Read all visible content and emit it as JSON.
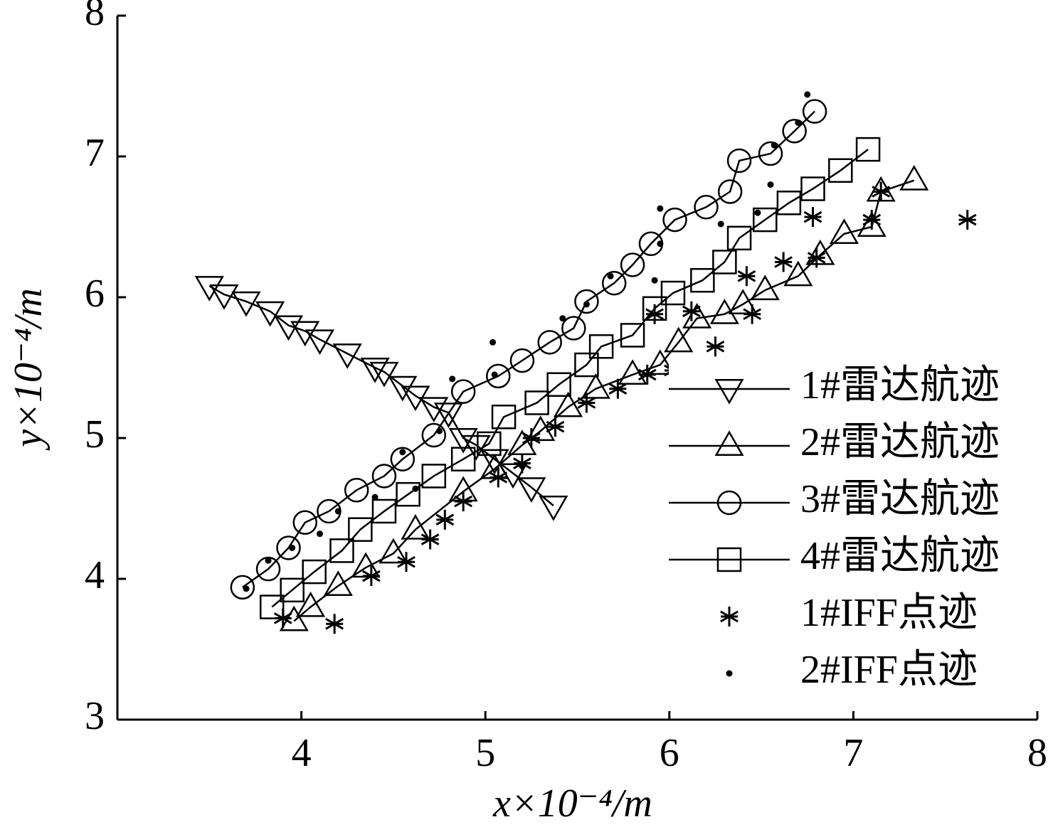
{
  "chart_data": {
    "type": "line",
    "xlabel": "x×10⁻⁴/m",
    "ylabel": "y×10⁻⁴/m",
    "xlim": [
      3,
      8
    ],
    "ylim": [
      3,
      8
    ],
    "xticks": [
      4,
      5,
      6,
      7,
      8
    ],
    "yticks": [
      3,
      4,
      5,
      6,
      7,
      8
    ],
    "legend": "lower right",
    "series": [
      {
        "name": "1#雷达航迹",
        "color": "#000000",
        "marker": "triangle-down",
        "line": true,
        "x": [
          3.5,
          3.58,
          3.7,
          3.83,
          3.93,
          4.02,
          4.1,
          4.25,
          4.4,
          4.45,
          4.55,
          4.62,
          4.72,
          4.8,
          4.88,
          4.95,
          5.05,
          5.15,
          5.25,
          5.37
        ],
        "values": [
          6.08,
          6.02,
          5.97,
          5.9,
          5.8,
          5.76,
          5.7,
          5.6,
          5.5,
          5.47,
          5.37,
          5.3,
          5.22,
          5.18,
          5.0,
          4.95,
          4.85,
          4.75,
          4.65,
          4.52
        ]
      },
      {
        "name": "2#雷达航迹",
        "color": "#000000",
        "marker": "triangle-up",
        "line": true,
        "x": [
          3.96,
          4.05,
          4.2,
          4.35,
          4.5,
          4.62,
          4.88,
          5.05,
          5.2,
          5.3,
          5.45,
          5.6,
          5.8,
          5.95,
          6.05,
          6.15,
          6.3,
          6.4,
          6.52,
          6.7,
          6.82,
          6.95,
          7.1,
          7.15,
          7.33
        ],
        "values": [
          3.7,
          3.8,
          3.95,
          4.08,
          4.18,
          4.35,
          4.62,
          4.78,
          4.95,
          5.05,
          5.22,
          5.35,
          5.45,
          5.52,
          5.68,
          5.85,
          5.88,
          5.95,
          6.05,
          6.15,
          6.3,
          6.45,
          6.5,
          6.75,
          6.83
        ]
      },
      {
        "name": "3#雷达航迹",
        "color": "#000000",
        "marker": "circle",
        "line": true,
        "x": [
          3.68,
          3.82,
          3.93,
          4.02,
          4.15,
          4.3,
          4.45,
          4.55,
          4.72,
          4.88,
          5.07,
          5.2,
          5.35,
          5.48,
          5.55,
          5.7,
          5.8,
          5.9,
          6.03,
          6.2,
          6.33,
          6.38,
          6.55,
          6.68,
          6.79
        ],
        "values": [
          3.94,
          4.07,
          4.22,
          4.4,
          4.48,
          4.63,
          4.73,
          4.85,
          5.02,
          5.33,
          5.44,
          5.55,
          5.68,
          5.78,
          5.97,
          6.1,
          6.23,
          6.38,
          6.55,
          6.64,
          6.75,
          6.97,
          7.02,
          7.18,
          7.32
        ]
      },
      {
        "name": "4#雷达航迹",
        "color": "#000000",
        "marker": "square",
        "line": true,
        "x": [
          3.84,
          3.95,
          4.07,
          4.22,
          4.32,
          4.45,
          4.58,
          4.72,
          4.88,
          5.02,
          5.1,
          5.28,
          5.4,
          5.55,
          5.63,
          5.8,
          5.92,
          6.02,
          6.18,
          6.3,
          6.38,
          6.52,
          6.65,
          6.78,
          6.93,
          7.08
        ],
        "values": [
          3.8,
          3.92,
          4.05,
          4.2,
          4.35,
          4.48,
          4.6,
          4.73,
          4.85,
          4.96,
          5.15,
          5.25,
          5.38,
          5.52,
          5.65,
          5.73,
          5.92,
          6.03,
          6.12,
          6.25,
          6.42,
          6.55,
          6.67,
          6.77,
          6.9,
          7.05
        ]
      },
      {
        "name": "1#IFF点迹",
        "color": "#000000",
        "marker": "asterisk",
        "line": false,
        "x": [
          3.9,
          4.18,
          4.38,
          4.57,
          4.7,
          4.78,
          4.88,
          5.07,
          5.2,
          5.25,
          5.38,
          5.55,
          5.72,
          5.88,
          5.92,
          6.02,
          6.12,
          6.25,
          6.45,
          6.42,
          6.62,
          6.8,
          6.78,
          7.1,
          7.15,
          7.62
        ],
        "values": [
          3.72,
          3.68,
          4.02,
          4.12,
          4.28,
          4.42,
          4.55,
          4.72,
          4.82,
          5.0,
          5.08,
          5.25,
          5.35,
          5.45,
          5.88,
          5.48,
          5.9,
          5.65,
          5.88,
          6.15,
          6.25,
          6.28,
          6.57,
          6.55,
          6.75,
          6.55
        ]
      },
      {
        "name": "2#IFF点迹",
        "color": "#000000",
        "marker": "dot",
        "line": false,
        "x": [
          3.7,
          3.82,
          3.95,
          4.1,
          4.2,
          4.4,
          4.55,
          4.62,
          4.75,
          4.82,
          5.04,
          5.05,
          5.2,
          5.42,
          5.55,
          5.68,
          5.92,
          5.95,
          5.95,
          6.28,
          6.48,
          6.55,
          6.57,
          6.7,
          6.75
        ],
        "values": [
          3.93,
          4.13,
          4.22,
          4.32,
          4.48,
          4.58,
          4.9,
          4.64,
          5.05,
          5.42,
          5.68,
          5.45,
          4.8,
          5.85,
          5.95,
          6.15,
          6.12,
          6.38,
          6.63,
          6.52,
          6.6,
          6.8,
          7.08,
          7.24,
          7.44
        ]
      }
    ]
  }
}
